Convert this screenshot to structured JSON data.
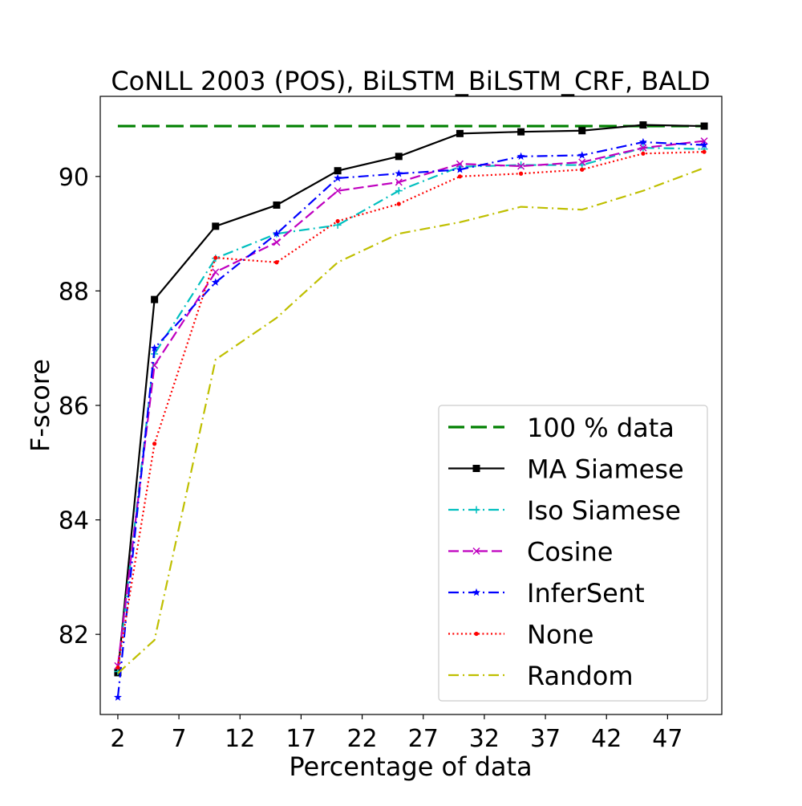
{
  "chart_data": {
    "type": "line",
    "title": "CoNLL 2003 (POS), BiLSTM_BiLSTM_CRF, BALD",
    "xlabel": "Percentage of data",
    "ylabel": "F-score",
    "xlim": [
      0.56,
      51.44
    ],
    "ylim": [
      80.6,
      91.4
    ],
    "xticks": [
      2,
      7,
      12,
      17,
      22,
      27,
      32,
      37,
      42,
      47
    ],
    "yticks": [
      82,
      84,
      86,
      88,
      90
    ],
    "grid": false,
    "legend_position": "bottom-right",
    "x": [
      2,
      5,
      10,
      15,
      20,
      25,
      30,
      35,
      40,
      45,
      50
    ],
    "series": [
      {
        "name": "100 % data",
        "color": "#008000",
        "linestyle": "dashed",
        "marker": "none",
        "values": [
          90.88,
          90.88,
          90.88,
          90.88,
          90.88,
          90.88,
          90.88,
          90.88,
          90.88,
          90.88,
          90.88
        ]
      },
      {
        "name": "MA Siamese",
        "color": "#000000",
        "linestyle": "solid",
        "marker": "square",
        "values": [
          81.33,
          87.85,
          89.13,
          89.5,
          90.1,
          90.35,
          90.75,
          90.78,
          90.8,
          90.9,
          90.88
        ]
      },
      {
        "name": "Iso Siamese",
        "color": "#00bfbf",
        "linestyle": "dashdot",
        "marker": "plus",
        "values": [
          81.35,
          86.9,
          88.57,
          89.0,
          89.15,
          89.75,
          90.17,
          90.2,
          90.2,
          90.5,
          90.48
        ]
      },
      {
        "name": "Cosine",
        "color": "#bf00bf",
        "linestyle": "dashed",
        "marker": "x",
        "values": [
          81.45,
          86.7,
          88.33,
          88.85,
          89.75,
          89.9,
          90.22,
          90.18,
          90.25,
          90.5,
          90.62
        ]
      },
      {
        "name": "InferSent",
        "color": "#0000ff",
        "linestyle": "dashdot",
        "marker": "star",
        "values": [
          80.9,
          87.0,
          88.15,
          89.0,
          89.97,
          90.05,
          90.12,
          90.35,
          90.37,
          90.6,
          90.55
        ]
      },
      {
        "name": "None",
        "color": "#ff0000",
        "linestyle": "dotted",
        "marker": "point",
        "values": [
          81.42,
          85.33,
          88.58,
          88.5,
          89.22,
          89.52,
          90.0,
          90.05,
          90.12,
          90.4,
          90.43
        ]
      },
      {
        "name": "Random",
        "color": "#bfbf00",
        "linestyle": "dashdot",
        "marker": "none",
        "values": [
          81.32,
          81.9,
          86.8,
          87.53,
          88.5,
          89.0,
          89.2,
          89.47,
          89.42,
          89.75,
          90.15
        ]
      }
    ]
  }
}
